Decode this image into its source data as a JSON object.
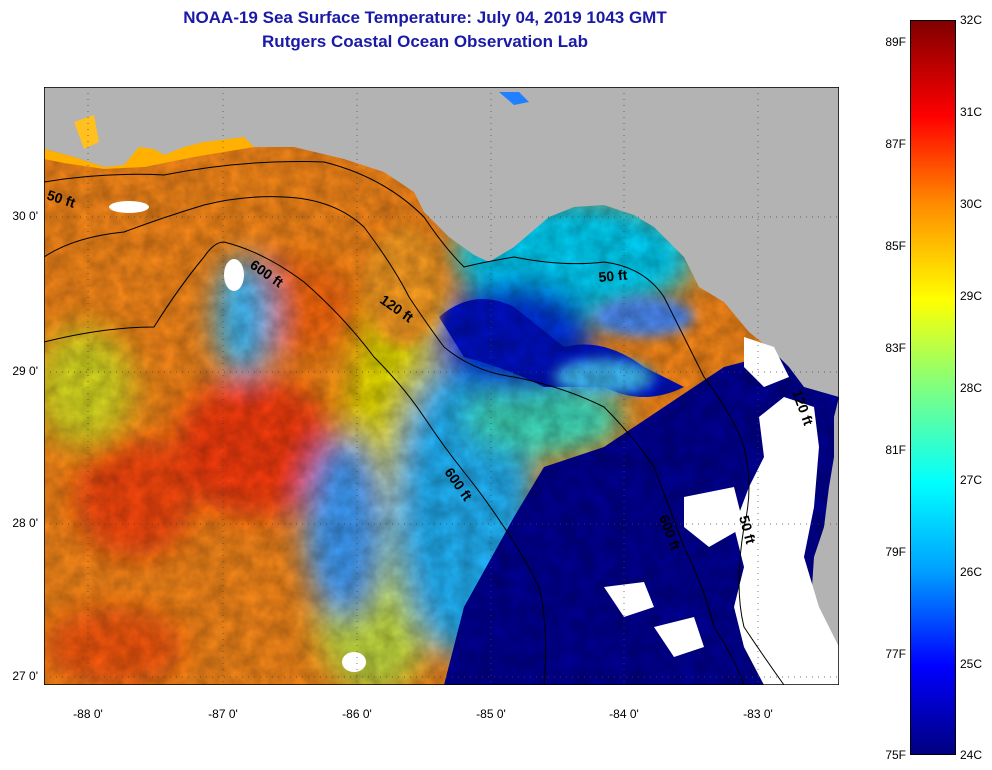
{
  "title": {
    "line1": "NOAA-19 Sea Surface Temperature:  July 04, 2019 1043 GMT",
    "line2": "Rutgers Coastal Ocean Observation Lab"
  },
  "map": {
    "lon_range": [
      -88.35,
      -82.4
    ],
    "lat_range": [
      26.97,
      30.9
    ],
    "x_ticks": [
      "-88 0'",
      "-87 0'",
      "-86 0'",
      "-85 0'",
      "-84 0'",
      "-83 0'"
    ],
    "y_ticks": [
      "30 0'",
      "29 0'",
      "28 0'",
      "27 0'"
    ],
    "isobath_labels": [
      "50 ft",
      "120 ft",
      "600 ft",
      "600 ft",
      "50 ft",
      "50 ft",
      "600 ft",
      "120 ft"
    ],
    "land_color": "#b3b3b3",
    "cloud_color": "#ffffff",
    "contour_color": "#000000"
  },
  "colorbar": {
    "celsius_labels": [
      "32C",
      "31C",
      "30C",
      "29C",
      "28C",
      "27C",
      "26C",
      "25C",
      "24C"
    ],
    "fahrenheit_labels": [
      "89F",
      "87F",
      "85F",
      "83F",
      "81F",
      "79F",
      "77F",
      "75F"
    ],
    "range_c": [
      24,
      32
    ],
    "colors": [
      "#000080",
      "#0000ff",
      "#00a0ff",
      "#00ffff",
      "#7fff7f",
      "#ffff00",
      "#ff8c00",
      "#ff0000",
      "#800000"
    ]
  }
}
